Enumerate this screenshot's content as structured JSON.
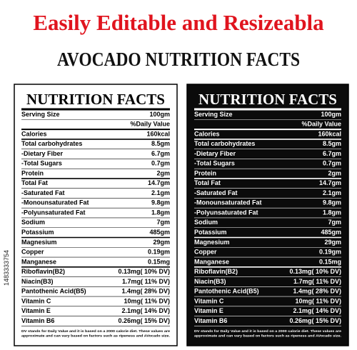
{
  "header": {
    "title": "Easily Editable and Resizeabla",
    "subtitle": "AVOCADO NUTRITION FACTS"
  },
  "stock_id": "1483333754",
  "label": {
    "title": "NUTRITION FACTS",
    "serving": {
      "label": "Serving Size",
      "value": "100gm"
    },
    "daily_value": "%Daily Value",
    "rows": [
      {
        "label": "Calories",
        "value": "160kcal"
      },
      {
        "label": "Total carbohydrates",
        "value": "8.5gm"
      },
      {
        "label": "-Dietary Fiber",
        "value": "6.7gm"
      },
      {
        "label": "-Total Sugars",
        "value": "0.7gm"
      },
      {
        "label": "Protein",
        "value": "2gm"
      },
      {
        "label": "Total Fat",
        "value": "14.7gm"
      },
      {
        "label": "-Saturated Fat",
        "value": "2.1gm"
      },
      {
        "label": "-Monounsaturated Fat",
        "value": "9.8gm"
      },
      {
        "label": "-Polyunsaturated Fat",
        "value": "1.8gm"
      },
      {
        "label": "Sodium",
        "value": "7gm"
      },
      {
        "label": "Potassium",
        "value": "485gm"
      },
      {
        "label": "Magnesium",
        "value": "29gm"
      },
      {
        "label": "Copper",
        "value": "0.19gm"
      },
      {
        "label": "Manganese",
        "value": "0.15mg"
      },
      {
        "label": "Riboflavin(B2)",
        "value": "0.13mg( 10% DV)"
      },
      {
        "label": "Niacin(B3)",
        "value": "1.7mg( 11% DV)"
      },
      {
        "label": "Pantothenic Acid(B5)",
        "value": "1.4mg( 28% DV)"
      },
      {
        "label": "Vitamin C",
        "value": "10mg( 11% DV)"
      },
      {
        "label": "Vitamin E",
        "value": "2.1mg( 14% DV)"
      },
      {
        "label": "Vitamin B6",
        "value": "0.26mg( 15% DV)"
      }
    ],
    "footnote": [
      "DV stands for Daily Value and it is based on a 2000 calorie diet. These values are",
      "approximate and can vary based on factors such as ripeness and AVocado size."
    ]
  }
}
